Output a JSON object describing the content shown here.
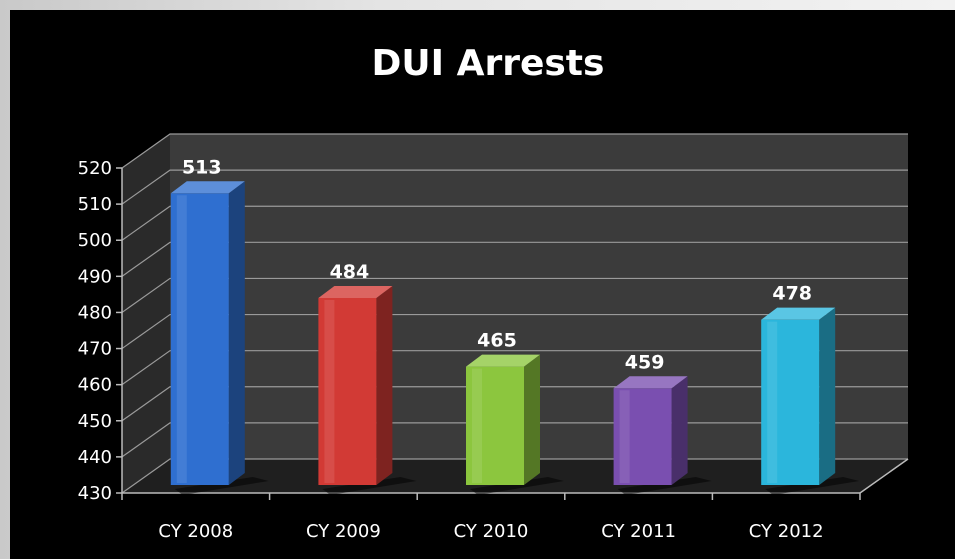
{
  "chart_data": {
    "type": "bar",
    "title": "DUI Arrests",
    "categories": [
      "CY 2008",
      "CY 2009",
      "CY 2010",
      "CY 2011",
      "CY 2012"
    ],
    "values": [
      513,
      484,
      465,
      459,
      478
    ],
    "value_labels": [
      "513",
      "484",
      "465",
      "459",
      "478"
    ],
    "ylim": [
      430,
      520
    ],
    "yticks": [
      430,
      440,
      450,
      460,
      470,
      480,
      490,
      500,
      510,
      520
    ],
    "ytick_labels": [
      "430",
      "440",
      "450",
      "460",
      "470",
      "480",
      "490",
      "500",
      "510",
      "520"
    ],
    "xlabel": "",
    "ylabel": "",
    "grid": true,
    "three_d": true,
    "bar_colors": [
      "#2f6fd0",
      "#d23a35",
      "#8cc63e",
      "#7a4fb0",
      "#2bb6dc"
    ],
    "background": "#000000"
  }
}
